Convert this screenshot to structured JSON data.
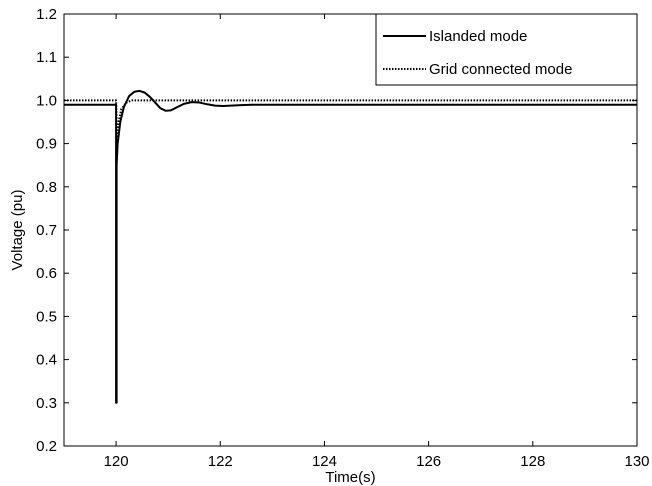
{
  "chart_data": {
    "type": "line",
    "title": "",
    "xlabel": "Time(s)",
    "ylabel": "Voltage (pu)",
    "xlim": [
      119,
      130
    ],
    "ylim": [
      0.2,
      1.2
    ],
    "x_ticks": [
      120,
      122,
      124,
      126,
      128,
      130
    ],
    "y_ticks": [
      0.2,
      0.3,
      0.4,
      0.5,
      0.6,
      0.7,
      0.8,
      0.9,
      1.0,
      1.1,
      1.2
    ],
    "x_tick_labels": [
      "120",
      "122",
      "124",
      "126",
      "128",
      "130"
    ],
    "y_tick_labels": [
      "0.2",
      "0.3",
      "0.4",
      "0.5",
      "0.6",
      "0.7",
      "0.8",
      "0.9",
      "1.0",
      "1.1",
      "1.2"
    ],
    "grid": false,
    "legend_position": "top-right",
    "series": [
      {
        "name": "Islanded mode",
        "style": "solid",
        "color": "#000000",
        "x": [
          119,
          120.0,
          120.0,
          120.01,
          120.01,
          120.03,
          120.08,
          120.15,
          120.25,
          120.35,
          120.45,
          120.55,
          120.65,
          120.75,
          120.85,
          120.95,
          121.05,
          121.15,
          121.3,
          121.45,
          121.6,
          121.75,
          121.9,
          122.05,
          122.2,
          122.4,
          122.6,
          123.0,
          124.0,
          130
        ],
        "y": [
          0.99,
          0.99,
          0.3,
          0.3,
          0.85,
          0.9,
          0.95,
          0.985,
          1.01,
          1.02,
          1.022,
          1.018,
          1.008,
          0.995,
          0.982,
          0.976,
          0.977,
          0.983,
          0.992,
          0.996,
          0.995,
          0.991,
          0.988,
          0.987,
          0.988,
          0.989,
          0.99,
          0.99,
          0.99,
          0.99
        ]
      },
      {
        "name": "Grid connected mode",
        "style": "dotted",
        "color": "#000000",
        "x": [
          119,
          120.0,
          120.02,
          120.05,
          120.1,
          120.2,
          120.3,
          120.4,
          120.5,
          130
        ],
        "y": [
          1.0,
          1.0,
          0.9,
          0.95,
          0.98,
          0.995,
          1.0,
          1.0,
          1.0,
          1.0
        ]
      }
    ]
  }
}
